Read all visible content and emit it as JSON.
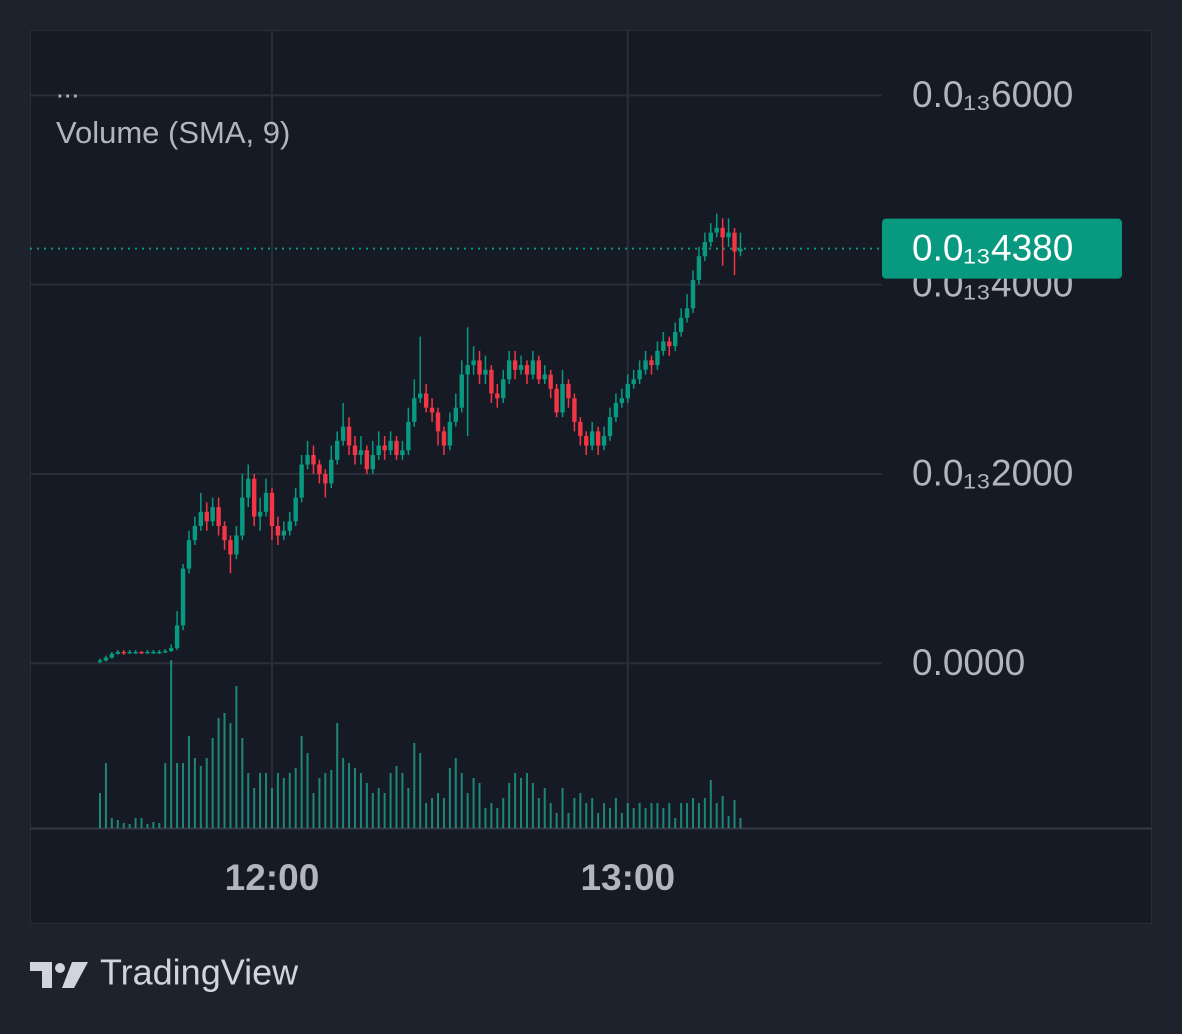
{
  "chart_data": {
    "type": "candlestick",
    "menu": "...",
    "indicator": "Volume (SMA, 9)",
    "brand": "TradingView",
    "up_color": "#089981",
    "down_color": "#f23645",
    "volume_color": "#22ab94",
    "ylim": [
      -1.74e-14,
      6.69e-14
    ],
    "yticks": [
      {
        "value": 0,
        "label": "0.0000"
      },
      {
        "value": 2e-14,
        "label": "0.0₁₃2000"
      },
      {
        "value": 4e-14,
        "label": "0.0₁₃4000"
      },
      {
        "value": 6e-14,
        "label": "0.0₁₃6000"
      }
    ],
    "grid": true,
    "last_price": {
      "value": 4.38e-14,
      "label": "0.0₁₃4380"
    },
    "xticks": [
      "12:00",
      "13:00"
    ],
    "x": [
      "11:31",
      "11:32",
      "11:33",
      "11:34",
      "11:35",
      "11:36",
      "11:37",
      "11:38",
      "11:39",
      "11:40",
      "11:41",
      "11:42",
      "11:43",
      "11:44",
      "11:45",
      "11:46",
      "11:47",
      "11:48",
      "11:49",
      "11:50",
      "11:51",
      "11:52",
      "11:53",
      "11:54",
      "11:55",
      "11:56",
      "11:57",
      "11:58",
      "11:59",
      "12:00",
      "12:01",
      "12:02",
      "12:03",
      "12:04",
      "12:05",
      "12:06",
      "12:07",
      "12:08",
      "12:09",
      "12:10",
      "12:11",
      "12:12",
      "12:13",
      "12:14",
      "12:15",
      "12:16",
      "12:17",
      "12:18",
      "12:19",
      "12:20",
      "12:21",
      "12:22",
      "12:23",
      "12:24",
      "12:25",
      "12:26",
      "12:27",
      "12:28",
      "12:29",
      "12:30",
      "12:31",
      "12:32",
      "12:33",
      "12:34",
      "12:35",
      "12:36",
      "12:37",
      "12:38",
      "12:39",
      "12:40",
      "12:41",
      "12:42",
      "12:43",
      "12:44",
      "12:45",
      "12:46",
      "12:47",
      "12:48",
      "12:49",
      "12:50",
      "12:51",
      "12:52",
      "12:53",
      "12:54",
      "12:55",
      "12:56",
      "12:57",
      "12:58",
      "12:59",
      "13:00",
      "13:01",
      "13:02",
      "13:03",
      "13:04",
      "13:05",
      "13:06",
      "13:07",
      "13:08",
      "13:09",
      "13:10",
      "13:11",
      "13:12",
      "13:13",
      "13:14",
      "13:15",
      "13:16",
      "13:17",
      "13:18",
      "13:19"
    ],
    "open": [
      2e-16,
      3e-16,
      6e-16,
      1e-15,
      1.2e-15,
      1.1e-15,
      1.2e-15,
      1.2e-15,
      1.1e-15,
      1.2e-15,
      1.2e-15,
      1.2e-15,
      1.3e-15,
      1.6e-15,
      4e-15,
      1e-14,
      1.3e-14,
      1.45e-14,
      1.6e-14,
      1.5e-14,
      1.65e-14,
      1.45e-14,
      1.3e-14,
      1.15e-14,
      1.35e-14,
      1.75e-14,
      1.95e-14,
      1.55e-14,
      1.6e-14,
      1.8e-14,
      1.45e-14,
      1.35e-14,
      1.4e-14,
      1.5e-14,
      1.75e-14,
      2.1e-14,
      2.2e-14,
      2.1e-14,
      2e-14,
      1.9e-14,
      2.15e-14,
      2.35e-14,
      2.5e-14,
      2.3e-14,
      2.2e-14,
      2.25e-14,
      2.05e-14,
      2.2e-14,
      2.3e-14,
      2.25e-14,
      2.35e-14,
      2.2e-14,
      2.25e-14,
      2.55e-14,
      2.8e-14,
      2.85e-14,
      2.7e-14,
      2.65e-14,
      2.45e-14,
      2.3e-14,
      2.55e-14,
      2.7e-14,
      3.05e-14,
      3.15e-14,
      3.2e-14,
      3.05e-14,
      3.1e-14,
      2.85e-14,
      2.8e-14,
      3e-14,
      3.2e-14,
      3.1e-14,
      3.15e-14,
      3.05e-14,
      3.2e-14,
      3e-14,
      3.05e-14,
      2.9e-14,
      2.65e-14,
      2.95e-14,
      2.8e-14,
      2.55e-14,
      2.4e-14,
      2.3e-14,
      2.45e-14,
      2.3e-14,
      2.4e-14,
      2.6e-14,
      2.75e-14,
      2.8e-14,
      2.95e-14,
      3e-14,
      3.1e-14,
      3.2e-14,
      3.15e-14,
      3.3e-14,
      3.4e-14,
      3.35e-14,
      3.5e-14,
      3.65e-14,
      3.75e-14,
      4.05e-14,
      4.3e-14,
      4.45e-14,
      4.55e-14,
      4.6e-14,
      4.5e-14,
      4.55e-14,
      4.35e-14
    ],
    "high": [
      5e-16,
      8e-16,
      1.2e-15,
      1.4e-15,
      1.4e-15,
      1.4e-15,
      1.4e-15,
      1.3e-15,
      1.4e-15,
      1.4e-15,
      1.4e-15,
      1.5e-15,
      2e-15,
      5.5e-15,
      1.05e-14,
      1.4e-14,
      1.55e-14,
      1.8e-14,
      1.7e-14,
      1.75e-14,
      1.75e-14,
      1.5e-14,
      1.35e-14,
      1.45e-14,
      2e-14,
      2.1e-14,
      2e-14,
      1.75e-14,
      1.95e-14,
      1.85e-14,
      1.55e-14,
      1.5e-14,
      1.6e-14,
      1.85e-14,
      2.2e-14,
      2.35e-14,
      2.3e-14,
      2.15e-14,
      2.05e-14,
      2.3e-14,
      2.45e-14,
      2.75e-14,
      2.6e-14,
      2.4e-14,
      2.4e-14,
      2.3e-14,
      2.35e-14,
      2.45e-14,
      2.4e-14,
      2.45e-14,
      2.4e-14,
      2.35e-14,
      2.7e-14,
      3e-14,
      3.45e-14,
      2.95e-14,
      2.8e-14,
      2.7e-14,
      2.5e-14,
      2.65e-14,
      2.85e-14,
      3.2e-14,
      3.55e-14,
      3.35e-14,
      3.3e-14,
      3.25e-14,
      3.15e-14,
      2.95e-14,
      3.1e-14,
      3.3e-14,
      3.3e-14,
      3.25e-14,
      3.2e-14,
      3.3e-14,
      3.25e-14,
      3.15e-14,
      3.1e-14,
      2.95e-14,
      3.1e-14,
      3e-14,
      2.85e-14,
      2.6e-14,
      2.45e-14,
      2.55e-14,
      2.5e-14,
      2.5e-14,
      2.7e-14,
      2.85e-14,
      2.9e-14,
      3.05e-14,
      3.1e-14,
      3.2e-14,
      3.3e-14,
      3.25e-14,
      3.4e-14,
      3.5e-14,
      3.45e-14,
      3.6e-14,
      3.75e-14,
      3.9e-14,
      4.15e-14,
      4.4e-14,
      4.55e-14,
      4.65e-14,
      4.75e-14,
      4.7e-14,
      4.7e-14,
      4.6e-14,
      4.55e-14
    ],
    "low": [
      0.0,
      2e-16,
      5e-16,
      9e-16,
      9e-16,
      1e-15,
      1e-15,
      1e-15,
      1e-15,
      1e-15,
      1e-15,
      1.1e-15,
      1.2e-15,
      1.4e-15,
      3.5e-15,
      9.5e-15,
      1.25e-14,
      1.4e-14,
      1.4e-14,
      1.45e-14,
      1.35e-14,
      1.2e-14,
      9.5e-15,
      1.1e-14,
      1.3e-14,
      1.65e-14,
      1.45e-14,
      1.4e-14,
      1.55e-14,
      1.3e-14,
      1.25e-14,
      1.3e-14,
      1.35e-14,
      1.45e-14,
      1.7e-14,
      2.05e-14,
      2e-14,
      1.9e-14,
      1.75e-14,
      1.85e-14,
      2.1e-14,
      2.3e-14,
      2.2e-14,
      2.1e-14,
      2.1e-14,
      2e-14,
      2e-14,
      2.15e-14,
      2.15e-14,
      2.2e-14,
      2.15e-14,
      2.15e-14,
      2.2e-14,
      2.5e-14,
      2.75e-14,
      2.65e-14,
      2.55e-14,
      2.3e-14,
      2.2e-14,
      2.25e-14,
      2.5e-14,
      2.65e-14,
      2.4e-14,
      3.05e-14,
      2.95e-14,
      2.95e-14,
      2.75e-14,
      2.7e-14,
      2.75e-14,
      2.95e-14,
      3e-14,
      3.05e-14,
      2.95e-14,
      3e-14,
      2.95e-14,
      2.95e-14,
      2.8e-14,
      2.6e-14,
      2.6e-14,
      2.7e-14,
      2.45e-14,
      2.3e-14,
      2.2e-14,
      2.25e-14,
      2.2e-14,
      2.25e-14,
      2.35e-14,
      2.55e-14,
      2.7e-14,
      2.75e-14,
      2.9e-14,
      2.95e-14,
      3.05e-14,
      3.05e-14,
      3.1e-14,
      3.25e-14,
      3.25e-14,
      3.3e-14,
      3.45e-14,
      3.6e-14,
      3.7e-14,
      4e-14,
      4.25e-14,
      4.4e-14,
      4.5e-14,
      4.2e-14,
      4.4e-14,
      4.1e-14,
      4.3e-14
    ],
    "close": [
      3e-16,
      6e-16,
      1e-15,
      1.2e-15,
      1.1e-15,
      1.2e-15,
      1.2e-15,
      1.1e-15,
      1.2e-15,
      1.2e-15,
      1.2e-15,
      1.3e-15,
      1.6e-15,
      4e-15,
      1e-14,
      1.3e-14,
      1.45e-14,
      1.6e-14,
      1.5e-14,
      1.65e-14,
      1.45e-14,
      1.3e-14,
      1.15e-14,
      1.35e-14,
      1.75e-14,
      1.95e-14,
      1.55e-14,
      1.6e-14,
      1.8e-14,
      1.45e-14,
      1.35e-14,
      1.4e-14,
      1.5e-14,
      1.75e-14,
      2.1e-14,
      2.2e-14,
      2.1e-14,
      2e-14,
      1.9e-14,
      2.15e-14,
      2.35e-14,
      2.5e-14,
      2.3e-14,
      2.2e-14,
      2.25e-14,
      2.05e-14,
      2.2e-14,
      2.3e-14,
      2.25e-14,
      2.35e-14,
      2.2e-14,
      2.25e-14,
      2.55e-14,
      2.8e-14,
      2.85e-14,
      2.7e-14,
      2.65e-14,
      2.45e-14,
      2.3e-14,
      2.55e-14,
      2.7e-14,
      3.05e-14,
      3.15e-14,
      3.2e-14,
      3.05e-14,
      3.1e-14,
      2.85e-14,
      2.8e-14,
      3e-14,
      3.2e-14,
      3.1e-14,
      3.15e-14,
      3.05e-14,
      3.2e-14,
      3e-14,
      3.05e-14,
      2.9e-14,
      2.65e-14,
      2.95e-14,
      2.8e-14,
      2.55e-14,
      2.4e-14,
      2.3e-14,
      2.45e-14,
      2.3e-14,
      2.4e-14,
      2.6e-14,
      2.75e-14,
      2.8e-14,
      2.95e-14,
      3e-14,
      3.1e-14,
      3.2e-14,
      3.15e-14,
      3.3e-14,
      3.4e-14,
      3.35e-14,
      3.5e-14,
      3.65e-14,
      3.75e-14,
      4.05e-14,
      4.3e-14,
      4.45e-14,
      4.55e-14,
      4.6e-14,
      4.5e-14,
      4.55e-14,
      4.35e-14,
      4.38e-14
    ],
    "volume": [
      35,
      65,
      10,
      8,
      5,
      4,
      10,
      10,
      4,
      6,
      5,
      65,
      168,
      65,
      65,
      92,
      70,
      62,
      70,
      90,
      110,
      115,
      105,
      142,
      90,
      55,
      40,
      55,
      55,
      40,
      55,
      50,
      55,
      60,
      92,
      75,
      35,
      50,
      55,
      58,
      105,
      70,
      65,
      60,
      55,
      45,
      35,
      40,
      35,
      55,
      62,
      55,
      40,
      85,
      75,
      25,
      30,
      35,
      30,
      60,
      70,
      55,
      35,
      50,
      45,
      20,
      25,
      20,
      30,
      45,
      55,
      50,
      55,
      45,
      30,
      40,
      25,
      15,
      40,
      15,
      30,
      35,
      25,
      30,
      15,
      25,
      20,
      30,
      15,
      25,
      20,
      25,
      20,
      25,
      25,
      20,
      25,
      10,
      25,
      25,
      30,
      25,
      30,
      48,
      25,
      32,
      12,
      28,
      10
    ]
  }
}
